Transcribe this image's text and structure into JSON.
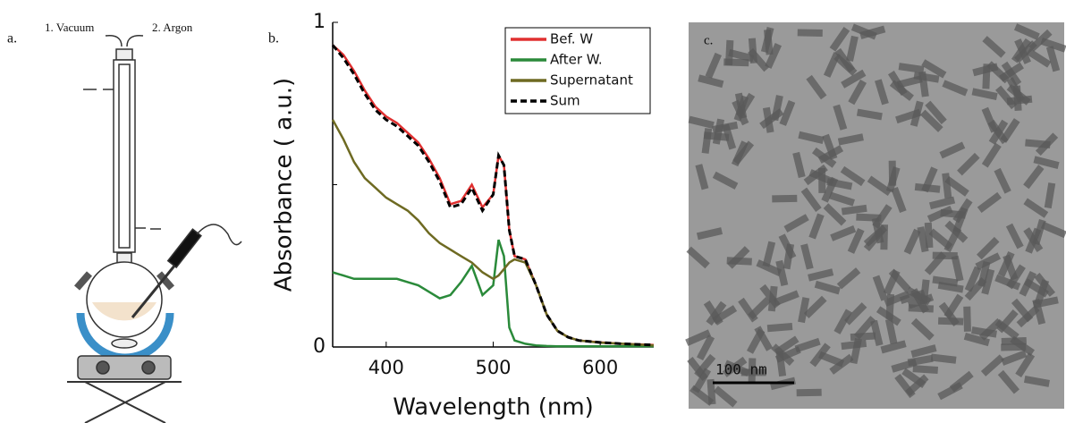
{
  "panels": {
    "a_label": "a.",
    "vacuum": "1. Vacuum",
    "argon": "2. Argon",
    "b_label": "b.",
    "c_label": "c.",
    "scale_bar": "100 nm"
  },
  "chart_data": {
    "type": "line",
    "x_label": "Wavelength (nm)",
    "y_label": "Absorbance ( a.u.)",
    "x": [
      350,
      360,
      370,
      380,
      390,
      400,
      410,
      420,
      430,
      440,
      450,
      460,
      470,
      480,
      490,
      500,
      505,
      510,
      515,
      520,
      530,
      540,
      550,
      560,
      570,
      580,
      600,
      620,
      650
    ],
    "series": [
      {
        "name": "Bef. W",
        "color": "#e03030",
        "values": [
          0.93,
          0.9,
          0.85,
          0.79,
          0.74,
          0.71,
          0.69,
          0.66,
          0.63,
          0.58,
          0.52,
          0.44,
          0.45,
          0.5,
          0.43,
          0.47,
          0.59,
          0.56,
          0.36,
          0.28,
          0.27,
          0.19,
          0.1,
          0.05,
          0.03,
          0.02,
          0.014,
          0.01,
          0.006
        ]
      },
      {
        "name": "After W.",
        "color": "#2a8a3a",
        "values": [
          0.23,
          0.22,
          0.21,
          0.21,
          0.21,
          0.21,
          0.21,
          0.2,
          0.19,
          0.17,
          0.15,
          0.16,
          0.2,
          0.25,
          0.16,
          0.19,
          0.33,
          0.28,
          0.06,
          0.02,
          0.01,
          0.005,
          0.003,
          0.002,
          0.002,
          0.002,
          0.002,
          0.002,
          0.002
        ]
      },
      {
        "name": "Supernatant",
        "color": "#6e6a22",
        "values": [
          0.7,
          0.64,
          0.57,
          0.52,
          0.49,
          0.46,
          0.44,
          0.42,
          0.39,
          0.35,
          0.32,
          0.3,
          0.28,
          0.26,
          0.23,
          0.21,
          0.22,
          0.24,
          0.26,
          0.27,
          0.26,
          0.19,
          0.1,
          0.05,
          0.03,
          0.02,
          0.013,
          0.01,
          0.005
        ]
      },
      {
        "name": "Sum",
        "color": "#000000",
        "dashed": true,
        "values": [
          0.93,
          0.89,
          0.84,
          0.78,
          0.73,
          0.7,
          0.68,
          0.65,
          0.62,
          0.57,
          0.51,
          0.43,
          0.44,
          0.49,
          0.42,
          0.47,
          0.59,
          0.56,
          0.36,
          0.28,
          0.27,
          0.19,
          0.1,
          0.05,
          0.03,
          0.02,
          0.014,
          0.01,
          0.006
        ]
      }
    ],
    "xlim": [
      350,
      650
    ],
    "xticks": [
      400,
      500,
      600
    ],
    "ylim": [
      0,
      1
    ],
    "yticks": [
      0,
      1
    ],
    "yminorticks": [
      0.5
    ],
    "legend": "top-right"
  }
}
